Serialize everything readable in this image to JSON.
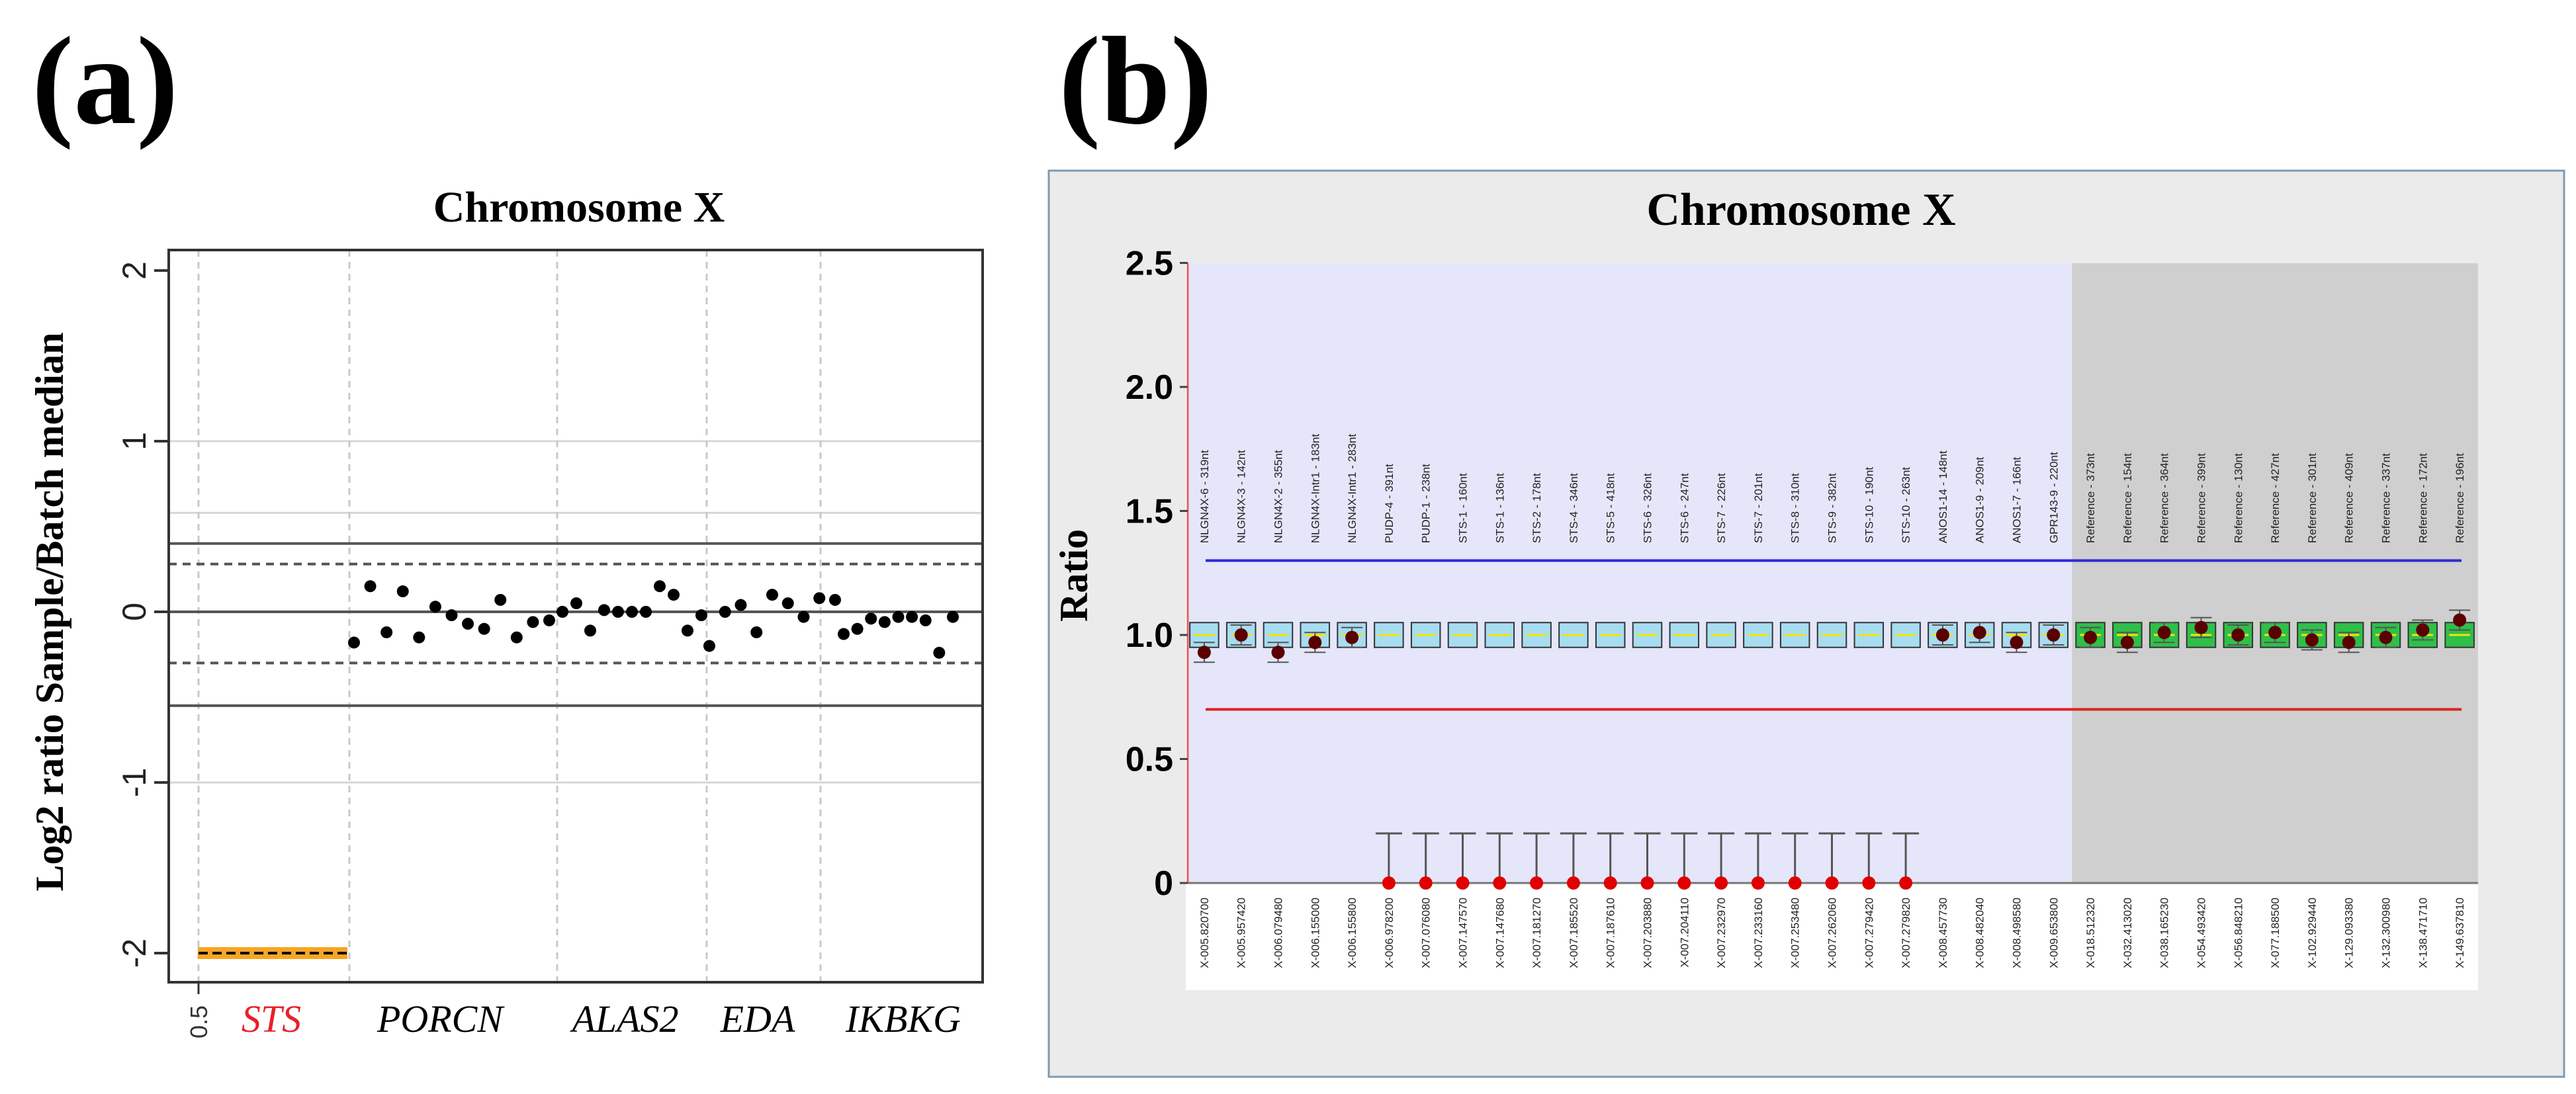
{
  "panels": {
    "a": {
      "letter": "(a)"
    },
    "b": {
      "letter": "(b)"
    }
  },
  "colors": {
    "sts_label": "#e8202a",
    "sts_fill": "#f5a623",
    "blue_line": "#2a2ad6",
    "red_line": "#e02020",
    "panel_b_bg": "#ebebeb",
    "test_region": "#e6e6fb",
    "ref_region": "#cfcfcf",
    "box_blue": "#a8dcf0",
    "box_green": "#2fbf4a",
    "dot_dark": "#5a0000",
    "dot_red": "#e00000"
  },
  "chart_data": [
    {
      "type": "scatter",
      "title": "Chromosome X",
      "ylabel": "Log2 ratio Sample/Batch median",
      "xlabel": "",
      "ylim": [
        -2.2,
        2.2
      ],
      "yticks": [
        "-2",
        "-1",
        "0",
        "1",
        "2"
      ],
      "ytick_values": [
        -2,
        -1,
        0,
        1,
        2
      ],
      "x_tick_label": "0.5",
      "gene_labels": [
        {
          "name": "STS",
          "highlight": true
        },
        {
          "name": "PORCN",
          "highlight": false
        },
        {
          "name": "ALAS2",
          "highlight": false
        },
        {
          "name": "EDA",
          "highlight": false
        },
        {
          "name": "IKBKG",
          "highlight": false
        }
      ],
      "reference_lines": {
        "solid": [
          0.4,
          0.0,
          -0.55
        ],
        "dashed": [
          0.28,
          -0.3
        ],
        "light": [
          0.58,
          1.0,
          -1.0
        ]
      },
      "sts_points": [
        -2,
        -2,
        -2,
        -2,
        -2,
        -2,
        -2,
        -2,
        -2,
        -2,
        -2
      ],
      "series": [
        {
          "name": "PORCN",
          "values": [
            -0.18,
            0.15,
            -0.12,
            0.12,
            -0.15,
            0.03,
            -0.02,
            -0.07,
            -0.1,
            0.07,
            -0.15,
            -0.06,
            -0.05
          ]
        },
        {
          "name": "ALAS2",
          "values": [
            0.0,
            0.05,
            -0.11,
            0.01,
            0.0,
            0.0,
            0.0,
            0.15,
            0.1,
            -0.11,
            -0.02
          ]
        },
        {
          "name": "EDA",
          "values": [
            -0.2,
            0.0,
            0.04,
            -0.12,
            0.1,
            0.05,
            -0.03,
            0.08,
            0.07
          ]
        },
        {
          "name": "IKBKG",
          "values": [
            -0.13,
            -0.1,
            -0.04,
            -0.06,
            -0.03,
            -0.03,
            -0.05,
            -0.24,
            -0.03
          ]
        }
      ]
    },
    {
      "type": "box",
      "title": "Chromosome X",
      "ylabel": "Ratio",
      "ylim": [
        0,
        2.5
      ],
      "yticks": [
        "0",
        "0.5",
        "1.0",
        "1.5",
        "2.0",
        "2.5"
      ],
      "ytick_values": [
        0,
        0.5,
        1.0,
        1.5,
        2.0,
        2.5
      ],
      "upper_threshold": 1.3,
      "lower_threshold": 0.7,
      "probe_names": [
        "NLGN4X-6 - 319nt",
        "NLGN4X-3 - 142nt",
        "NLGN4X-2 - 355nt",
        "NLGN4X-Intr1 - 183nt",
        "NLGN4X-Intr1 - 283nt",
        "PUDP-4 - 391nt",
        "PUDP-1 - 238nt",
        "STS-1 - 160nt",
        "STS-1 - 136nt",
        "STS-2 - 178nt",
        "STS-4 - 346nt",
        "STS-5 - 418nt",
        "STS-6 - 326nt",
        "STS-6 - 247nt",
        "STS-7 - 226nt",
        "STS-7 - 201nt",
        "STS-8 - 310nt",
        "STS-9 - 382nt",
        "STS-10 - 190nt",
        "STS-10 - 263nt",
        "ANOS1-14 - 148nt",
        "ANOS1-9 - 209nt",
        "ANOS1-7 - 166nt",
        "GPR143-9 - 220nt",
        "Reference - 373nt",
        "Reference - 154nt",
        "Reference - 364nt",
        "Reference - 399nt",
        "Reference - 130nt",
        "Reference - 427nt",
        "Reference - 301nt",
        "Reference - 409nt",
        "Reference - 337nt",
        "Reference - 172nt",
        "Reference - 196nt"
      ],
      "positions": [
        "X-005.820700",
        "X-005.957420",
        "X-006.079480",
        "X-006.155000",
        "X-006.155800",
        "X-006.978200",
        "X-007.076080",
        "X-007.147570",
        "X-007.147680",
        "X-007.181270",
        "X-007.185520",
        "X-007.187610",
        "X-007.203880",
        "X-007.204110",
        "X-007.232970",
        "X-007.233160",
        "X-007.253480",
        "X-007.262060",
        "X-007.279420",
        "X-007.279820",
        "X-008.457730",
        "X-008.482040",
        "X-008.498580",
        "X-009.653800",
        "X-018.512320",
        "X-032.413020",
        "X-038.165230",
        "X-054.493420",
        "X-056.848210",
        "X-077.188500",
        "X-102.929440",
        "X-129.093380",
        "X-132.300980",
        "X-138.471710",
        "X-149.637810"
      ],
      "sample_ratios": [
        0.93,
        1.0,
        0.93,
        0.97,
        0.99,
        0,
        0,
        0,
        0,
        0,
        0,
        0,
        0,
        0,
        0,
        0,
        0,
        0,
        0,
        0,
        1.0,
        1.01,
        0.97,
        1.0,
        0.99,
        0.97,
        1.01,
        1.03,
        1.0,
        1.01,
        0.98,
        0.97,
        0.99,
        1.02,
        1.06
      ],
      "reference_count": 11
    }
  ]
}
